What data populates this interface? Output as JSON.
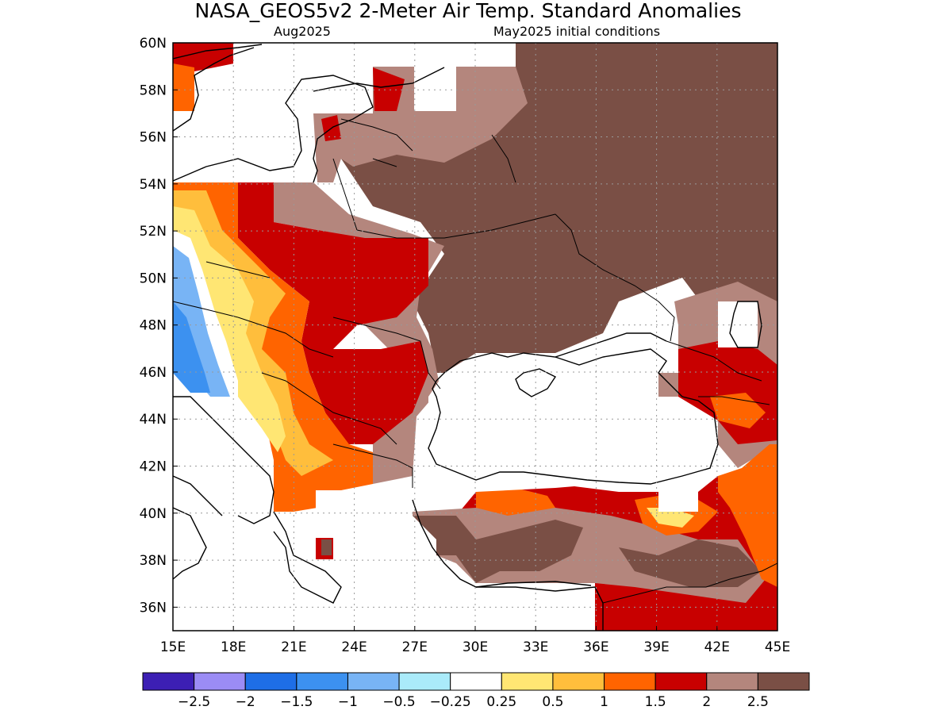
{
  "header": {
    "title": "NASA_GEOS5v2 2-Meter Air Temp. Standard Anomalies",
    "valid_month": "Aug2025",
    "init_conditions": "May2025 initial conditions"
  },
  "map": {
    "lon_range": [
      15,
      45
    ],
    "lat_range": [
      35,
      60
    ],
    "lon_ticks": [
      "15E",
      "18E",
      "21E",
      "24E",
      "27E",
      "30E",
      "33E",
      "36E",
      "39E",
      "42E",
      "45E"
    ],
    "lat_ticks": [
      "60N",
      "58N",
      "56N",
      "54N",
      "52N",
      "50N",
      "48N",
      "46N",
      "44N",
      "42N",
      "40N",
      "38N",
      "36N"
    ]
  },
  "colorbar": {
    "colors": [
      "#3c1fb4",
      "#9b8cf5",
      "#1e6ee6",
      "#3c91f0",
      "#78b4f5",
      "#aaebfa",
      "#ffffff",
      "#ffe673",
      "#ffbe3c",
      "#ff6400",
      "#c80000",
      "#b4867d",
      "#7a4f45"
    ],
    "labels": [
      "−2.5",
      "−2",
      "−1.5",
      "−1",
      "−0.5",
      "−0.25",
      "0.25",
      "0.5",
      "1",
      "1.5",
      "2",
      "2.5"
    ]
  },
  "colors": {
    "deep_brown": "#7a4f45",
    "light_brown": "#b4867d",
    "dark_red": "#c80000",
    "orange": "#ff6400",
    "light_orange": "#ffbe3c",
    "yellow": "#ffe673",
    "light_blue": "#78b4f5",
    "blue": "#3c91f0"
  }
}
